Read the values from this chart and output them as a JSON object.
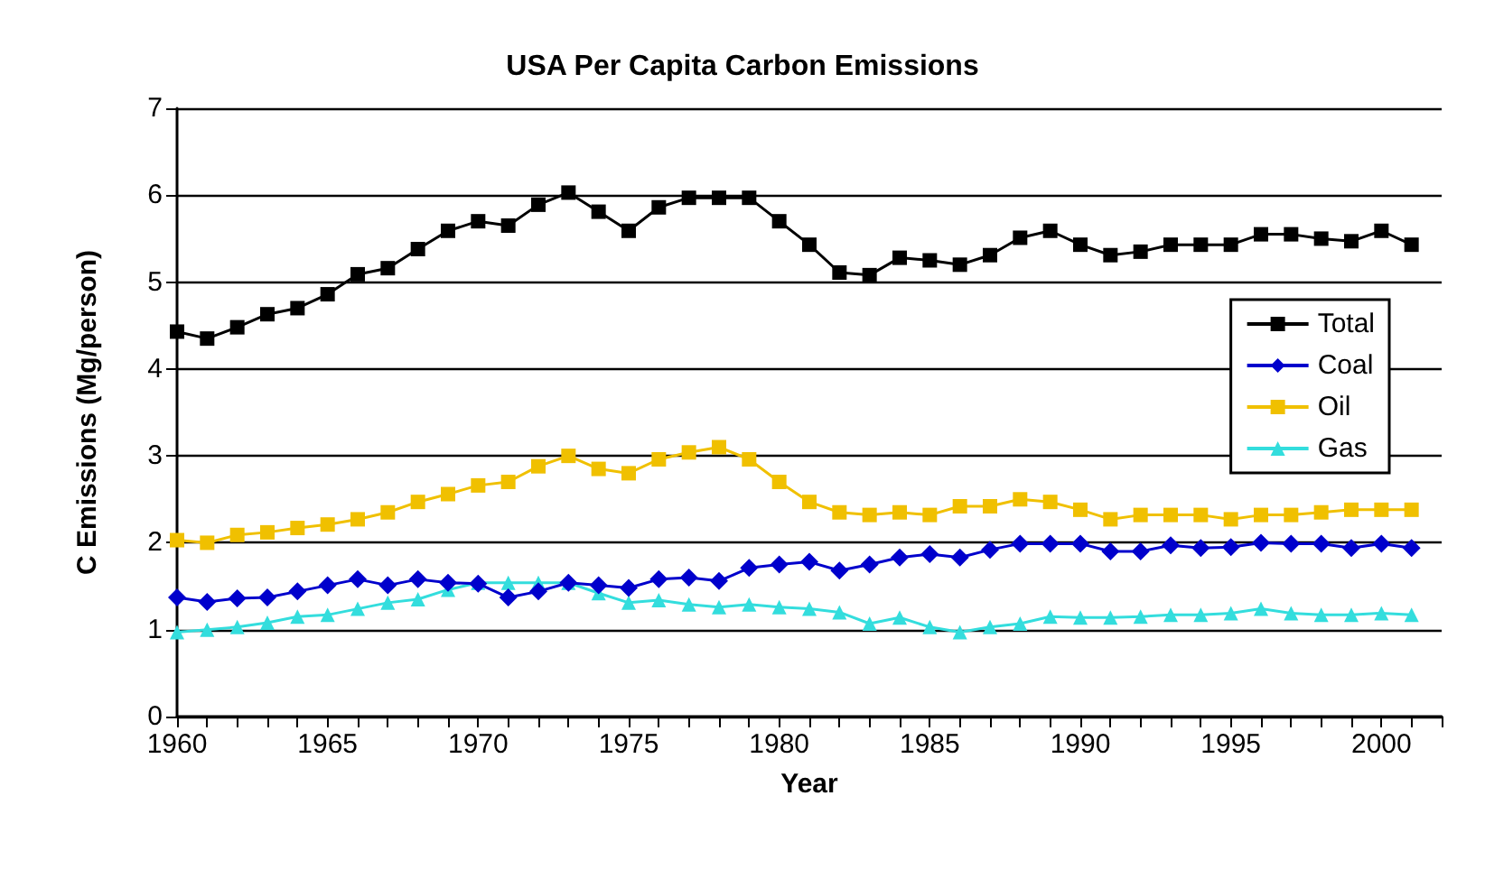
{
  "chart_data": {
    "type": "line",
    "title": "USA Per Capita Carbon Emissions",
    "xlabel": "Year",
    "ylabel": "C Emissions (Mg/person)",
    "x": [
      1960,
      1961,
      1962,
      1963,
      1964,
      1965,
      1966,
      1967,
      1968,
      1969,
      1970,
      1971,
      1972,
      1973,
      1974,
      1975,
      1976,
      1977,
      1978,
      1979,
      1980,
      1981,
      1982,
      1983,
      1984,
      1985,
      1986,
      1987,
      1988,
      1989,
      1990,
      1991,
      1992,
      1993,
      1994,
      1995,
      1996,
      1997,
      1998,
      1999,
      2000,
      2001
    ],
    "series": [
      {
        "name": "Total",
        "color": "#000000",
        "marker": "square",
        "values": [
          4.43,
          4.35,
          4.48,
          4.63,
          4.7,
          4.86,
          5.09,
          5.16,
          5.38,
          5.59,
          5.7,
          5.65,
          5.89,
          6.03,
          5.81,
          5.59,
          5.86,
          5.97,
          5.97,
          5.97,
          5.7,
          5.43,
          5.11,
          5.08,
          5.28,
          5.25,
          5.2,
          5.31,
          5.51,
          5.59,
          5.43,
          5.31,
          5.35,
          5.43,
          5.43,
          5.43,
          5.55,
          5.55,
          5.5,
          5.47,
          5.59,
          5.43
        ]
      },
      {
        "name": "Coal",
        "color": "#0000cc",
        "marker": "diamond",
        "values": [
          1.37,
          1.32,
          1.36,
          1.37,
          1.44,
          1.51,
          1.58,
          1.51,
          1.58,
          1.54,
          1.53,
          1.37,
          1.44,
          1.54,
          1.51,
          1.48,
          1.58,
          1.6,
          1.56,
          1.71,
          1.75,
          1.78,
          1.68,
          1.75,
          1.83,
          1.87,
          1.83,
          1.92,
          1.99,
          1.99,
          1.99,
          1.9,
          1.9,
          1.97,
          1.94,
          1.95,
          2.0,
          1.99,
          1.99,
          1.94,
          1.99,
          1.94
        ]
      },
      {
        "name": "Oil",
        "color": "#f0c000",
        "marker": "square",
        "values": [
          2.03,
          2.0,
          2.09,
          2.12,
          2.17,
          2.21,
          2.27,
          2.35,
          2.47,
          2.56,
          2.66,
          2.7,
          2.88,
          3.0,
          2.85,
          2.8,
          2.96,
          3.04,
          3.1,
          2.96,
          2.7,
          2.47,
          2.35,
          2.32,
          2.35,
          2.32,
          2.42,
          2.42,
          2.5,
          2.47,
          2.38,
          2.27,
          2.32,
          2.32,
          2.32,
          2.27,
          2.32,
          2.32,
          2.35,
          2.38,
          2.38,
          2.38
        ]
      },
      {
        "name": "Gas",
        "color": "#33dddd",
        "marker": "triangle",
        "values": [
          0.97,
          1.0,
          1.03,
          1.08,
          1.15,
          1.17,
          1.24,
          1.31,
          1.35,
          1.46,
          1.54,
          1.54,
          1.54,
          1.54,
          1.42,
          1.31,
          1.34,
          1.29,
          1.26,
          1.29,
          1.26,
          1.24,
          1.2,
          1.07,
          1.14,
          1.03,
          0.97,
          1.03,
          1.07,
          1.15,
          1.14,
          1.14,
          1.15,
          1.17,
          1.17,
          1.19,
          1.24,
          1.19,
          1.17,
          1.17,
          1.19,
          1.17
        ]
      }
    ],
    "xlim": [
      1960,
      2002
    ],
    "xticks": [
      1960,
      {
        "value": 1961,
        "label": null
      },
      {
        "value": 1962,
        "label": null
      },
      {
        "value": 1963,
        "label": null
      },
      {
        "value": 1964,
        "label": null
      },
      1965,
      {
        "value": 1966,
        "label": null
      },
      {
        "value": 1967,
        "label": null
      },
      {
        "value": 1968,
        "label": null
      },
      {
        "value": 1969,
        "label": null
      },
      1970,
      {
        "value": 1971,
        "label": null
      },
      {
        "value": 1972,
        "label": null
      },
      {
        "value": 1973,
        "label": null
      },
      {
        "value": 1974,
        "label": null
      },
      1975,
      {
        "value": 1976,
        "label": null
      },
      {
        "value": 1977,
        "label": null
      },
      {
        "value": 1978,
        "label": null
      },
      {
        "value": 1979,
        "label": null
      },
      1980,
      {
        "value": 1981,
        "label": null
      },
      {
        "value": 1982,
        "label": null
      },
      {
        "value": 1983,
        "label": null
      },
      {
        "value": 1984,
        "label": null
      },
      1985,
      {
        "value": 1986,
        "label": null
      },
      {
        "value": 1987,
        "label": null
      },
      {
        "value": 1988,
        "label": null
      },
      {
        "value": 1989,
        "label": null
      },
      1990,
      {
        "value": 1991,
        "label": null
      },
      {
        "value": 1992,
        "label": null
      },
      {
        "value": 1993,
        "label": null
      },
      {
        "value": 1994,
        "label": null
      },
      1995,
      {
        "value": 1996,
        "label": null
      },
      {
        "value": 1997,
        "label": null
      },
      {
        "value": 1998,
        "label": null
      },
      {
        "value": 1999,
        "label": null
      },
      2000,
      {
        "value": 2001,
        "label": null
      },
      {
        "value": 2002,
        "label": null
      }
    ],
    "ylim": [
      0,
      7
    ],
    "yticks": [
      0,
      1,
      2,
      3,
      4,
      5,
      6,
      7
    ],
    "grid": "y",
    "legend": "right"
  }
}
